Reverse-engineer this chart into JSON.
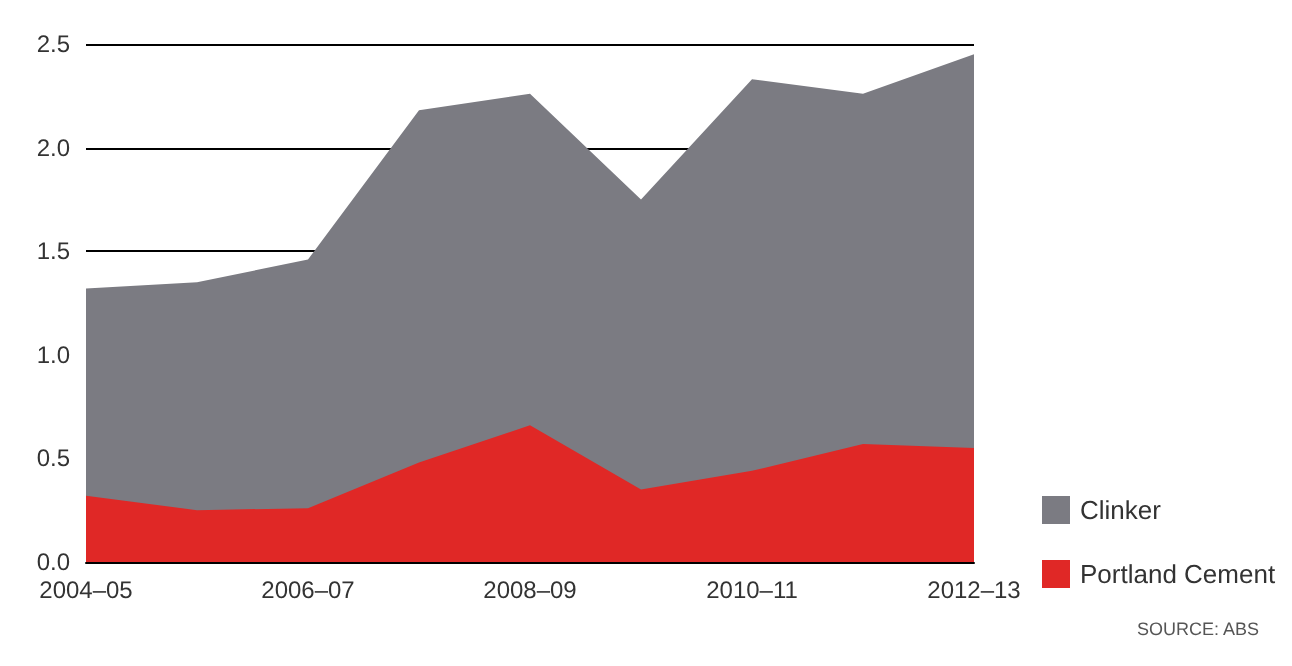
{
  "chart_data": {
    "type": "area",
    "categories": [
      "2004–05",
      null,
      "2006–07",
      null,
      "2008–09",
      null,
      "2010–11",
      null,
      "2012–13"
    ],
    "series": [
      {
        "name": "Clinker",
        "color": "#7b7b82",
        "values": [
          1.32,
          1.35,
          1.46,
          2.18,
          2.26,
          1.75,
          2.33,
          2.26,
          2.45
        ]
      },
      {
        "name": "Portland Cement",
        "color": "#e02826",
        "values": [
          0.32,
          0.25,
          0.26,
          0.48,
          0.66,
          0.35,
          0.44,
          0.57,
          0.55
        ]
      }
    ],
    "ylim": [
      0,
      2.5
    ],
    "yticks": [
      {
        "value": 0,
        "label": "0.0"
      },
      {
        "value": 0.5,
        "label": "0.5"
      },
      {
        "value": 1,
        "label": "1.0"
      },
      {
        "value": 1.5,
        "label": "1.5"
      },
      {
        "value": 2,
        "label": "2.0"
      },
      {
        "value": 2.5,
        "label": "2.5"
      }
    ],
    "grid": "y",
    "legend": "bottom right",
    "annotations": [
      "SOURCE: ABS"
    ]
  }
}
